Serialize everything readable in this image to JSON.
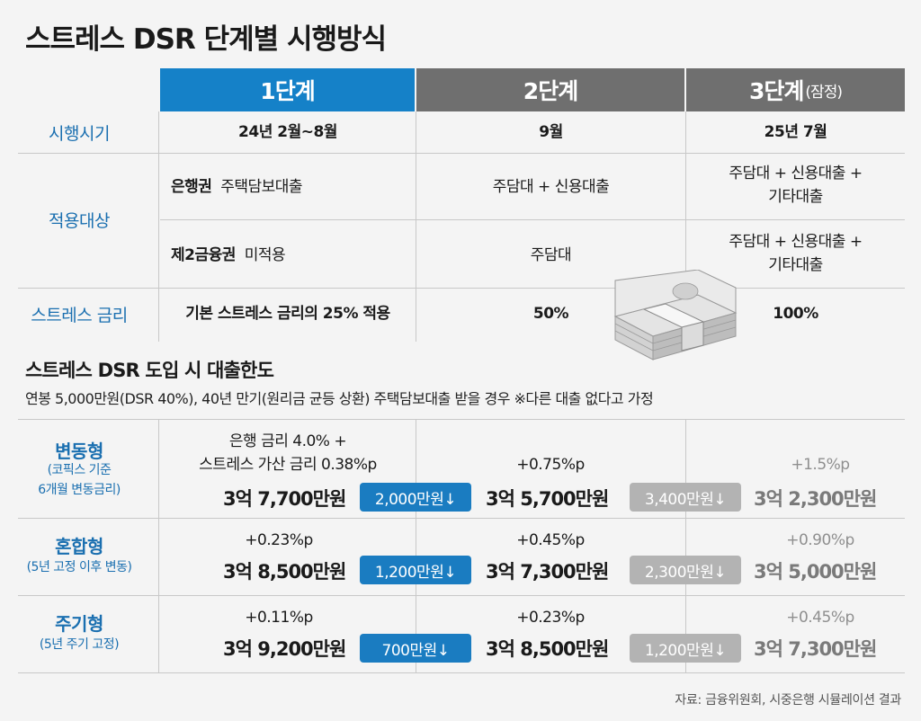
{
  "title": "스트레스 DSR 단계별 시행방식",
  "headers": {
    "stage1": "1단계",
    "stage2": "2단계",
    "stage3": "3단계",
    "stage3_note": "(잠정)"
  },
  "schedule": {
    "label": "시행시기",
    "s1": "24년 2월~8월",
    "s2": "9월",
    "s3": "25년 7월"
  },
  "target": {
    "label": "적용대상",
    "bank": {
      "name": "은행권",
      "s1": "주택담보대출",
      "s2": "주담대 + 신용대출",
      "s3_l1": "주담대 + 신용대출 +",
      "s3_l2": "기타대출"
    },
    "second": {
      "name": "제2금융권",
      "s1": "미적용",
      "s2": "주담대",
      "s3_l1": "주담대 + 신용대출 +",
      "s3_l2": "기타대출"
    }
  },
  "stress_rate": {
    "label": "스트레스 금리",
    "s1": "기본 스트레스 금리의 25% 적용",
    "s2": "50%",
    "s3": "100%"
  },
  "section": {
    "title": "스트레스 DSR 도입 시 대출한도",
    "subtitle": "연봉 5,000만원(DSR 40%), 40년 만기(원리금 균등 상환) 주택담보대출 받을 경우   ※다른 대출 없다고 가정"
  },
  "loans": [
    {
      "name": "변동형",
      "desc_l1": "(코픽스 기준",
      "desc_l2": "6개월 변동금리)",
      "s1_rate_l1": "은행 금리 4.0% +",
      "s1_rate_l2": "스트레스 가산 금리 0.38%p",
      "s1_amount": "3억 7,700만원",
      "diff1": "2,000만원↓",
      "s2_rate": "+0.75%p",
      "s2_amount": "3억 5,700만원",
      "diff2": "3,400만원↓",
      "s3_rate": "+1.5%p",
      "s3_amount": "3억 2,300만원"
    },
    {
      "name": "혼합형",
      "desc_l1": "(5년 고정 이후 변동)",
      "desc_l2": "",
      "s1_rate_l1": "+0.23%p",
      "s1_rate_l2": "",
      "s1_amount": "3억 8,500만원",
      "diff1": "1,200만원↓",
      "s2_rate": "+0.45%p",
      "s2_amount": "3억 7,300만원",
      "diff2": "2,300만원↓",
      "s3_rate": "+0.90%p",
      "s3_amount": "3억 5,000만원"
    },
    {
      "name": "주기형",
      "desc_l1": "(5년 주기 고정)",
      "desc_l2": "",
      "s1_rate_l1": "+0.11%p",
      "s1_rate_l2": "",
      "s1_amount": "3억 9,200만원",
      "diff1": "700만원↓",
      "s2_rate": "+0.23%p",
      "s2_amount": "3억 8,500만원",
      "diff2": "1,200만원↓",
      "s3_rate": "+0.45%p",
      "s3_amount": "3억 7,300만원"
    }
  ],
  "source": "자료: 금융위원회, 시중은행 시뮬레이션 결과",
  "colors": {
    "blue": "#1581c8",
    "gray_header": "#6f6f6f",
    "label_blue": "#1a6fb0",
    "pill_gray": "#b3b3b3"
  }
}
